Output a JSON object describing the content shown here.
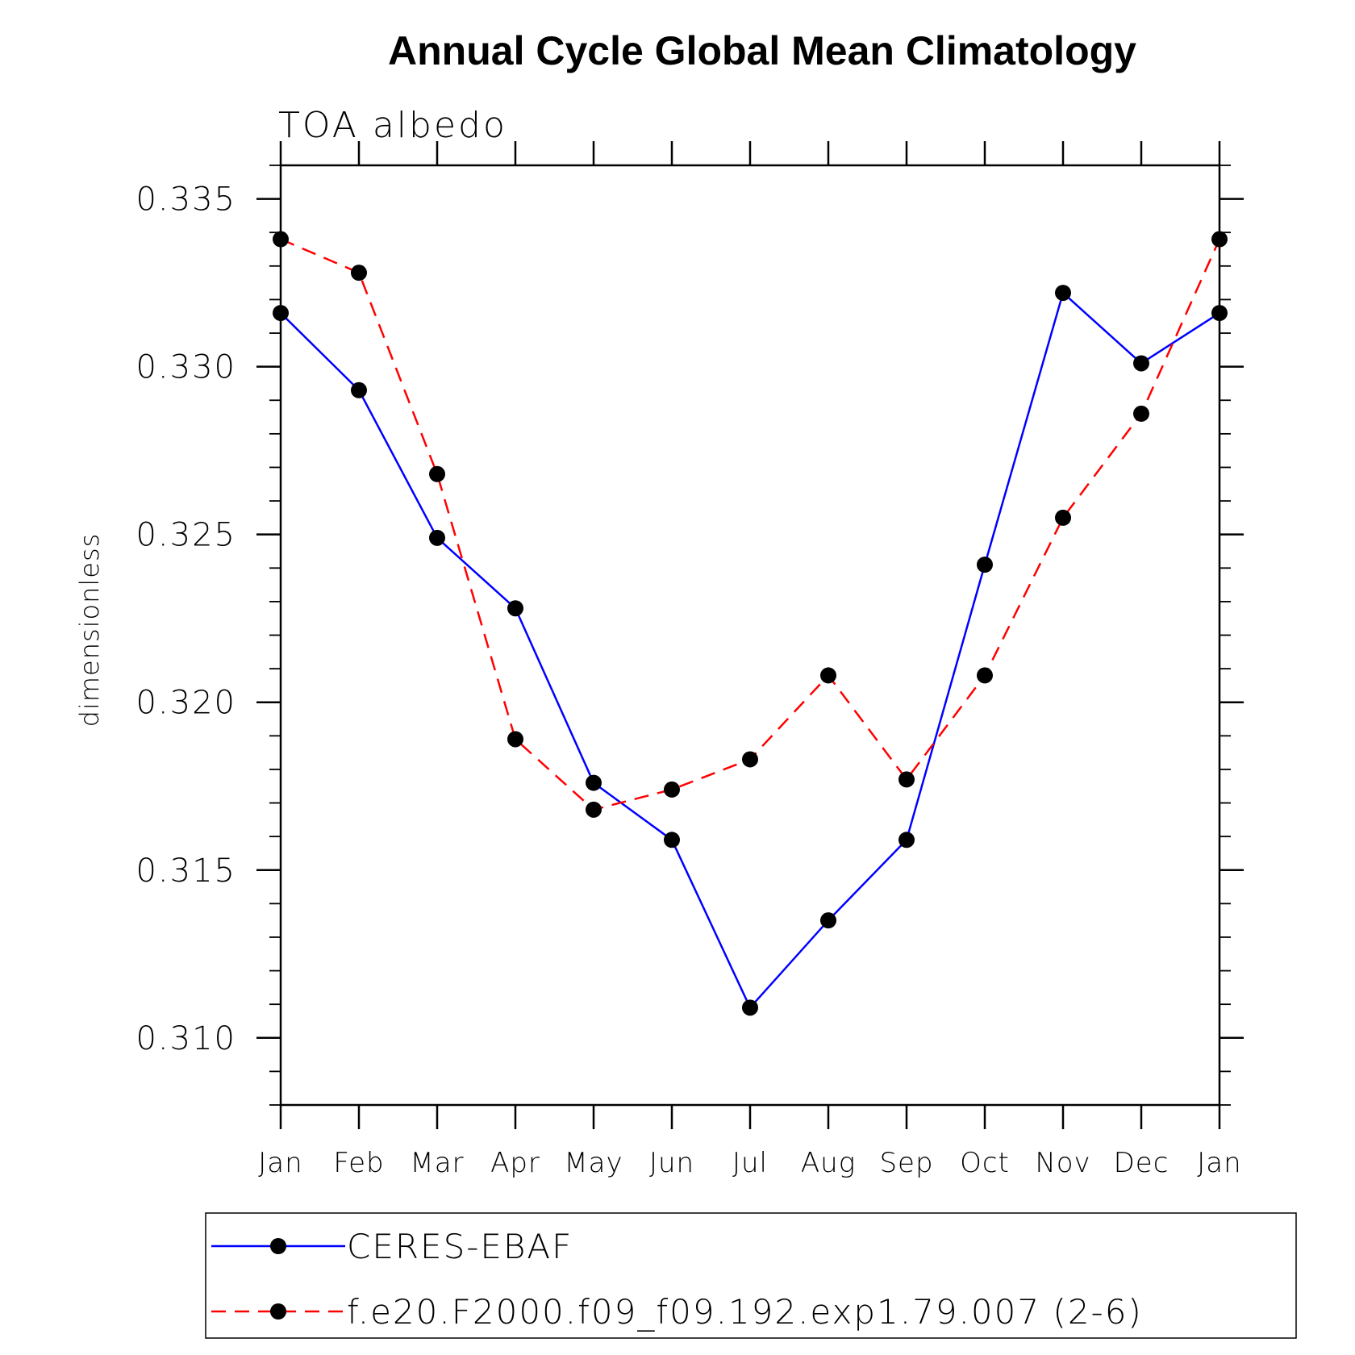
{
  "chart_data": {
    "type": "line",
    "title": "Annual Cycle Global Mean Climatology",
    "subtitle": "TOA albedo",
    "xlabel": "",
    "ylabel": "dimensionless",
    "categories": [
      "Jan",
      "Feb",
      "Mar",
      "Apr",
      "May",
      "Jun",
      "Jul",
      "Aug",
      "Sep",
      "Oct",
      "Nov",
      "Dec",
      "Jan"
    ],
    "ylim": [
      0.308,
      0.336
    ],
    "yticks": [
      0.31,
      0.315,
      0.32,
      0.325,
      0.33,
      0.335
    ],
    "ytick_labels": [
      "0.310",
      "0.315",
      "0.320",
      "0.325",
      "0.330",
      "0.335"
    ],
    "grid": false,
    "legend_position": "bottom",
    "series": [
      {
        "name": "CERES-EBAF",
        "color": "#0000ff",
        "dash": "solid",
        "marker": "circle",
        "values": [
          0.3316,
          0.3293,
          0.3249,
          0.3228,
          0.3176,
          0.3159,
          0.3109,
          0.3135,
          0.3159,
          0.3241,
          0.3322,
          0.3301,
          0.3316
        ]
      },
      {
        "name": "f.e20.F2000.f09_f09.192.exp1.79.007 (2-6)",
        "color": "#ff0000",
        "dash": "dashed",
        "marker": "circle",
        "values": [
          0.3338,
          0.3328,
          0.3268,
          0.3189,
          0.3168,
          0.3174,
          0.3183,
          0.3208,
          0.3177,
          0.3208,
          0.3255,
          0.3286,
          0.3338
        ]
      }
    ]
  }
}
